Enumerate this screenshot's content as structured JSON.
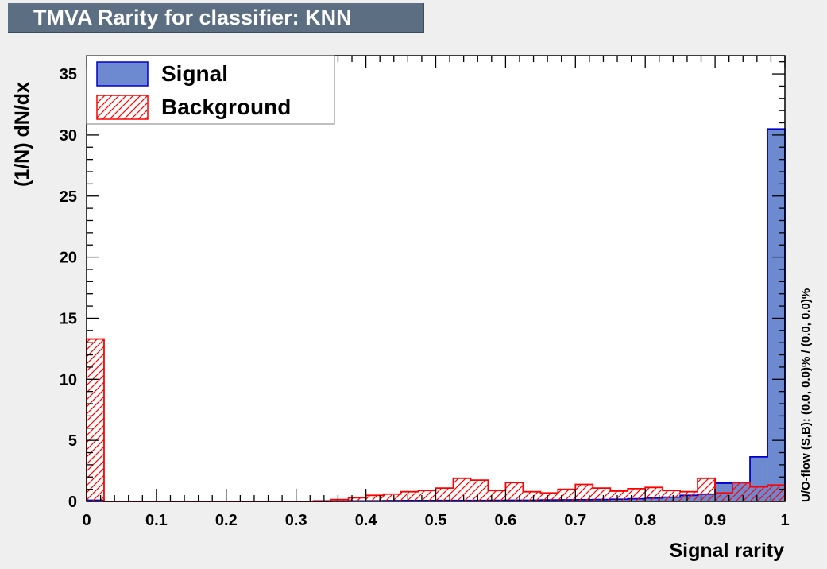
{
  "title": "TMVA Rarity for classifier: KNN",
  "overflow_note": "U/O-flow (S,B): (0.0, 0.0)% / (0.0, 0.0)%",
  "colors": {
    "signal_fill": "#6d8ad0",
    "signal_line": "#0000cc",
    "background_line": "#ff0000",
    "frame_bg": "#ffffff"
  },
  "chart_data": {
    "type": "bar",
    "subtype": "histogram",
    "xlabel": "Signal rarity",
    "ylabel": "(1/N) dN/dx",
    "xlim": [
      0,
      1
    ],
    "ylim": [
      0,
      36.5
    ],
    "xticks": [
      "0",
      "0.1",
      "0.2",
      "0.3",
      "0.4",
      "0.5",
      "0.6",
      "0.7",
      "0.8",
      "0.9",
      "1"
    ],
    "xtick_values": [
      0,
      0.1,
      0.2,
      0.3,
      0.4,
      0.5,
      0.6,
      0.7,
      0.8,
      0.9,
      1
    ],
    "yticks": [
      "0",
      "5",
      "10",
      "15",
      "20",
      "25",
      "30",
      "35"
    ],
    "ytick_values": [
      0,
      5,
      10,
      15,
      20,
      25,
      30,
      35
    ],
    "legend_position": "top-left",
    "bins": 40,
    "series": [
      {
        "name": "Signal",
        "style": "filled",
        "values": [
          0.1,
          0,
          0,
          0,
          0,
          0,
          0,
          0,
          0,
          0,
          0,
          0,
          0,
          0,
          0.02,
          0.04,
          0.05,
          0.06,
          0.07,
          0.07,
          0.08,
          0.08,
          0.08,
          0.09,
          0.1,
          0.1,
          0.12,
          0.13,
          0.14,
          0.15,
          0.18,
          0.22,
          0.28,
          0.35,
          0.5,
          0.6,
          1.5,
          1.55,
          3.65,
          30.5
        ]
      },
      {
        "name": "Background",
        "style": "hatched",
        "values": [
          13.3,
          0,
          0,
          0,
          0,
          0,
          0,
          0,
          0,
          0,
          0,
          0,
          0,
          0.05,
          0.15,
          0.3,
          0.5,
          0.6,
          0.8,
          0.9,
          1.1,
          1.9,
          1.75,
          0.9,
          1.55,
          0.8,
          0.7,
          1.0,
          1.4,
          1.1,
          0.85,
          1.05,
          1.15,
          0.9,
          0.8,
          1.9,
          0.7,
          1.55,
          1.2,
          1.35
        ]
      }
    ]
  }
}
